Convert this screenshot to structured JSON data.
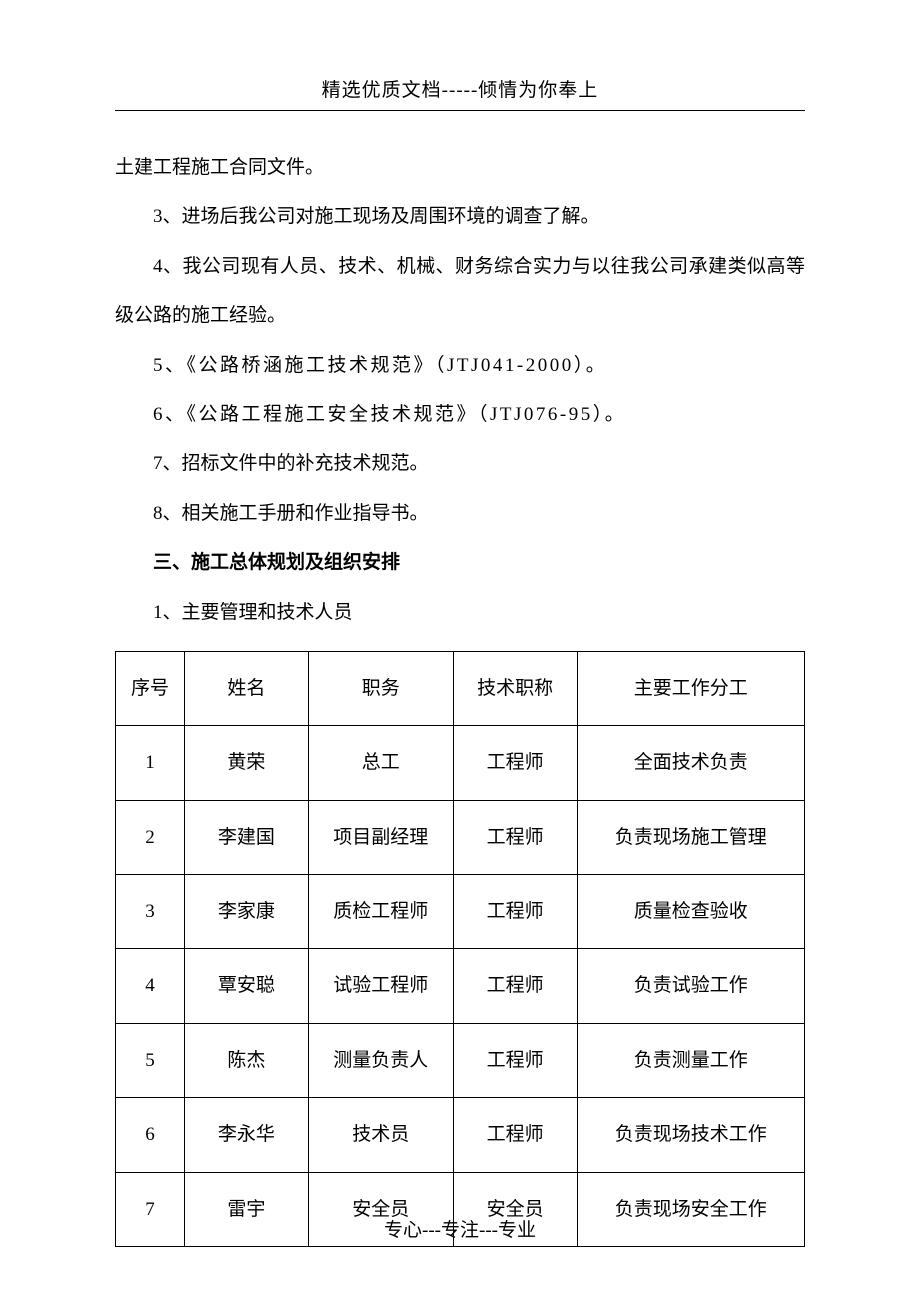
{
  "header": {
    "text": "精选优质文档-----倾情为你奉上"
  },
  "paragraphs": {
    "p1": "土建工程施工合同文件。",
    "p2": "3、进场后我公司对施工现场及周围环境的调查了解。",
    "p3": "4、我公司现有人员、技术、机械、财务综合实力与以往我公司承建类似高等级公路的施工经验。",
    "p4": "5、《公路桥涵施工技术规范》（JTJ041-2000）。",
    "p5": "6、《公路工程施工安全技术规范》（JTJ076-95）。",
    "p6": "7、招标文件中的补充技术规范。",
    "p7": "8、相关施工手册和作业指导书。",
    "p8": "三、施工总体规划及组织安排",
    "p9": "1、主要管理和技术人员"
  },
  "table": {
    "headers": {
      "col1": "序号",
      "col2": "姓名",
      "col3": "职务",
      "col4": "技术职称",
      "col5": "主要工作分工"
    },
    "rows": [
      {
        "col1": "1",
        "col2": "黄荣",
        "col3": "总工",
        "col4": "工程师",
        "col5": "全面技术负责"
      },
      {
        "col1": "2",
        "col2": "李建国",
        "col3": "项目副经理",
        "col4": "工程师",
        "col5": "负责现场施工管理"
      },
      {
        "col1": "3",
        "col2": "李家康",
        "col3": "质检工程师",
        "col4": "工程师",
        "col5": "质量检查验收"
      },
      {
        "col1": "4",
        "col2": "覃安聪",
        "col3": "试验工程师",
        "col4": "工程师",
        "col5": "负责试验工作"
      },
      {
        "col1": "5",
        "col2": "陈杰",
        "col3": "测量负责人",
        "col4": "工程师",
        "col5": "负责测量工作"
      },
      {
        "col1": "6",
        "col2": "李永华",
        "col3": "技术员",
        "col4": "工程师",
        "col5": "负责现场技术工作"
      },
      {
        "col1": "7",
        "col2": "雷宇",
        "col3": "安全员",
        "col4": "安全员",
        "col5": "负责现场安全工作"
      }
    ]
  },
  "footer": {
    "text": "专心---专注---专业"
  },
  "styles": {
    "background_color": "#ffffff",
    "text_color": "#000000",
    "border_color": "#000000",
    "font_size_body": 19,
    "font_size_table": 19,
    "line_height": 2.6
  }
}
